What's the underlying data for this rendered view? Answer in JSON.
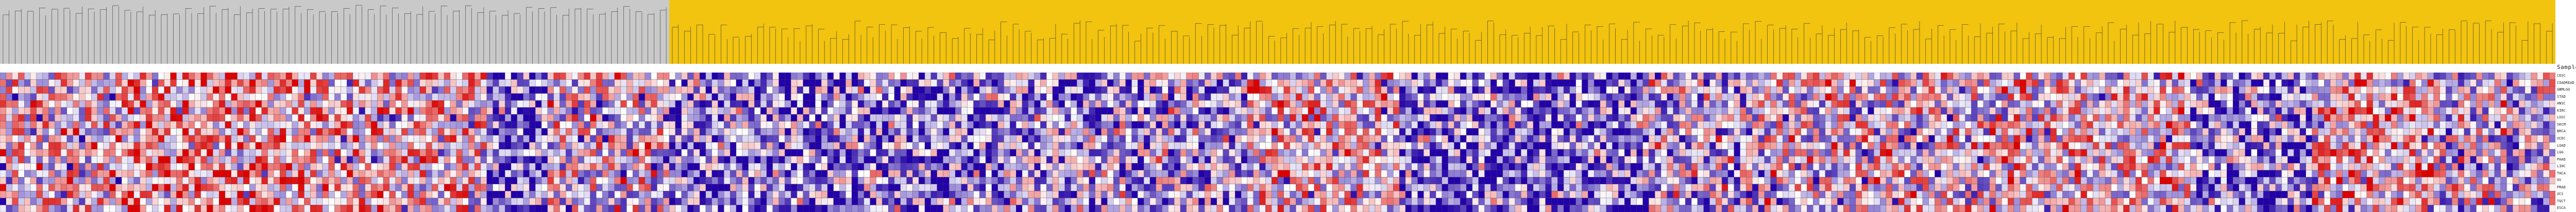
{
  "chart_data": {
    "type": "heatmap",
    "header": "SampleName",
    "row_labels": [
      "CESC",
      "COADREAD",
      "GBMLGG",
      "STAD",
      "HNSC",
      "KIRC",
      "LUSC",
      "SKCM",
      "BRCA",
      "UCEC",
      "LUAD",
      "LGG",
      "PAAD",
      "LIHC",
      "THCA",
      "OV",
      "PRAD",
      "UCS",
      "TGCT",
      "ESCA"
    ],
    "n_columns": 420,
    "track_colors": {
      "gray": "#c9c9c9",
      "gold": "#f2c30f"
    },
    "track_split_column": 110,
    "value_range": [
      -1,
      1
    ],
    "colors": {
      "low": "#2200aa",
      "mid": "#ffffff",
      "high": "#dd0000"
    },
    "column_segments": [
      {
        "from": 0,
        "to": 20,
        "bias": 0.05
      },
      {
        "from": 20,
        "to": 50,
        "bias": 0.3
      },
      {
        "from": 50,
        "to": 80,
        "bias": 0.15
      },
      {
        "from": 80,
        "to": 90,
        "bias": -0.55
      },
      {
        "from": 90,
        "to": 110,
        "bias": 0.0
      },
      {
        "from": 110,
        "to": 165,
        "bias": -0.45
      },
      {
        "from": 165,
        "to": 205,
        "bias": -0.3
      },
      {
        "from": 205,
        "to": 230,
        "bias": 0.1
      },
      {
        "from": 230,
        "to": 270,
        "bias": -0.5
      },
      {
        "from": 270,
        "to": 290,
        "bias": -0.2
      },
      {
        "from": 290,
        "to": 330,
        "bias": 0.0
      },
      {
        "from": 330,
        "to": 360,
        "bias": 0.12
      },
      {
        "from": 360,
        "to": 380,
        "bias": -0.4
      },
      {
        "from": 380,
        "to": 400,
        "bias": 0.2
      },
      {
        "from": 400,
        "to": 420,
        "bias": -0.1
      }
    ]
  }
}
